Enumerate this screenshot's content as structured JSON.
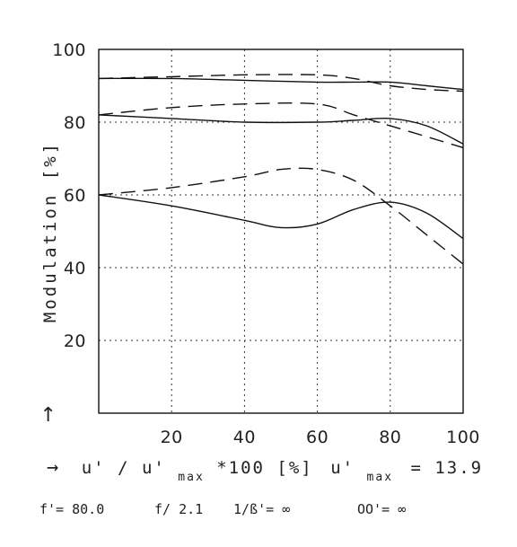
{
  "chart_data": {
    "type": "line",
    "ylabel": "Modulation [%]",
    "xlabel": "→ u'/u'max *100 [%]",
    "xlabel_parts": {
      "arrow": "→",
      "u1": "u'",
      "slash": "/",
      "u2": "u'",
      "sub": "max",
      "rest": " *100 [%]",
      "umax_u": "u'",
      "umax_sub": "max",
      "umax_val": "= 13.9"
    },
    "y_arrow": "↑",
    "xlim": [
      0,
      100
    ],
    "ylim": [
      0,
      100
    ],
    "x_ticks": [
      "20",
      "40",
      "60",
      "80",
      "100"
    ],
    "y_ticks": [
      "20",
      "40",
      "60",
      "80",
      "100"
    ],
    "grid": "dotted",
    "series": [
      {
        "style": "solid",
        "x": [
          0,
          20,
          40,
          60,
          70,
          80,
          90,
          100
        ],
        "y": [
          92,
          92,
          91.5,
          91,
          91,
          91,
          90,
          89
        ]
      },
      {
        "style": "dashed",
        "x": [
          0,
          20,
          40,
          60,
          70,
          80,
          90,
          100
        ],
        "y": [
          92,
          92.5,
          93,
          93,
          92,
          90,
          89,
          88.5
        ]
      },
      {
        "style": "solid",
        "x": [
          0,
          20,
          40,
          60,
          70,
          80,
          90,
          100
        ],
        "y": [
          82,
          81,
          80,
          80,
          80.5,
          81,
          79,
          74
        ]
      },
      {
        "style": "dashed",
        "x": [
          0,
          20,
          40,
          60,
          70,
          80,
          90,
          100
        ],
        "y": [
          82,
          84,
          85,
          85,
          82,
          79,
          76,
          73
        ]
      },
      {
        "style": "solid",
        "x": [
          0,
          20,
          40,
          50,
          60,
          70,
          80,
          90,
          100
        ],
        "y": [
          60,
          57,
          53,
          51,
          52,
          56,
          58,
          55,
          48
        ]
      },
      {
        "style": "dashed",
        "x": [
          0,
          20,
          40,
          50,
          60,
          70,
          80,
          90,
          100
        ],
        "y": [
          60,
          62,
          65,
          67,
          67,
          64,
          57,
          49,
          41
        ]
      }
    ],
    "footer": {
      "f": "f'= 80.0",
      "fnum": "f/ 2.1",
      "beta": "1/ß'= ∞",
      "oo": "OO'= ∞"
    }
  }
}
